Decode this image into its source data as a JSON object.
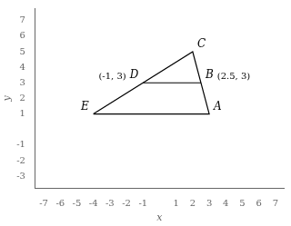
{
  "chart_data": {
    "type": "scatter",
    "xlabel": "x",
    "ylabel": "y",
    "series": [
      {
        "x": [
          -4,
          2,
          3,
          -4
        ],
        "values": [
          1,
          5,
          1,
          1
        ],
        "color": "black"
      },
      {
        "x": [
          -1,
          2.5
        ],
        "values": [
          3,
          3
        ],
        "color": "black"
      }
    ],
    "points": [
      {
        "label": "E",
        "x": -4,
        "y": 1
      },
      {
        "label": "D",
        "x": -1,
        "y": 3
      },
      {
        "label": "B",
        "x": 2.5,
        "y": 3
      },
      {
        "label": "A",
        "x": 3,
        "y": 1
      },
      {
        "label": "C",
        "x": 2,
        "y": 5
      }
    ],
    "annotations": [
      {
        "text": "(-1, 3)",
        "x": -1,
        "y": 3
      },
      {
        "text": "(2.5, 3)",
        "x": 2.5,
        "y": 3
      }
    ],
    "xlim": [
      -7.5,
      7.5
    ],
    "ylim": [
      -3.8,
      7.8
    ],
    "xticks": [
      -7,
      -6,
      -5,
      -4,
      -3,
      -2,
      -1,
      1,
      2,
      3,
      4,
      5,
      6,
      7
    ],
    "yticks": [
      -3,
      -2,
      -1,
      1,
      2,
      3,
      4,
      5,
      6,
      7
    ],
    "grid": false
  }
}
